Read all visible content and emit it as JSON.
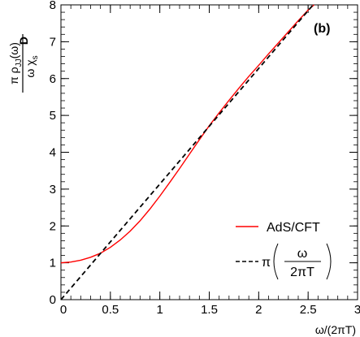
{
  "chart_data": {
    "type": "line",
    "panel_label": "(b)",
    "xlabel": "ω/(2πT)",
    "ylabel": {
      "numerator": "π ρ",
      "numerator_sub": "JJ",
      "numerator_arg": "(ω)",
      "denominator": "ω χ",
      "denominator_sub": "s",
      "denominator_suffix": "D"
    },
    "xlim": [
      0,
      3
    ],
    "ylim": [
      0,
      8
    ],
    "x_ticks": [
      {
        "value": 0,
        "label": "0"
      },
      {
        "value": 0.5,
        "label": "0.5"
      },
      {
        "value": 1,
        "label": "1"
      },
      {
        "value": 1.5,
        "label": "1.5"
      },
      {
        "value": 2,
        "label": "2"
      },
      {
        "value": 2.5,
        "label": "2.5"
      },
      {
        "value": 3,
        "label": "3"
      }
    ],
    "y_ticks": [
      {
        "value": 0,
        "label": "0"
      },
      {
        "value": 1,
        "label": "1"
      },
      {
        "value": 2,
        "label": "2"
      },
      {
        "value": 3,
        "label": "3"
      },
      {
        "value": 4,
        "label": "4"
      },
      {
        "value": 5,
        "label": "5"
      },
      {
        "value": 6,
        "label": "6"
      },
      {
        "value": 7,
        "label": "7"
      },
      {
        "value": 8,
        "label": "8"
      }
    ],
    "legend_placement": "bottom-right",
    "series": [
      {
        "name": "AdS/CFT",
        "color": "#ff0000",
        "style": "solid",
        "x": [
          0,
          0.1,
          0.2,
          0.3,
          0.4,
          0.5,
          0.6,
          0.7,
          0.8,
          0.9,
          1.0,
          1.1,
          1.2,
          1.3,
          1.4,
          1.5,
          1.6,
          1.7,
          1.8,
          1.9,
          2.0,
          2.1,
          2.2,
          2.3,
          2.4,
          2.5,
          2.56
        ],
        "y": [
          1.0,
          1.02,
          1.07,
          1.15,
          1.26,
          1.42,
          1.62,
          1.86,
          2.14,
          2.46,
          2.81,
          3.18,
          3.56,
          3.95,
          4.34,
          4.72,
          5.07,
          5.41,
          5.74,
          6.06,
          6.36,
          6.67,
          6.97,
          7.27,
          7.57,
          7.86,
          8.0
        ]
      },
      {
        "name_parts": {
          "prefix": "π",
          "numerator": "ω",
          "denominator": "2πT"
        },
        "color": "#000000",
        "style": "dashed",
        "x": [
          0,
          2.55
        ],
        "y": [
          0,
          8.0
        ]
      }
    ]
  }
}
